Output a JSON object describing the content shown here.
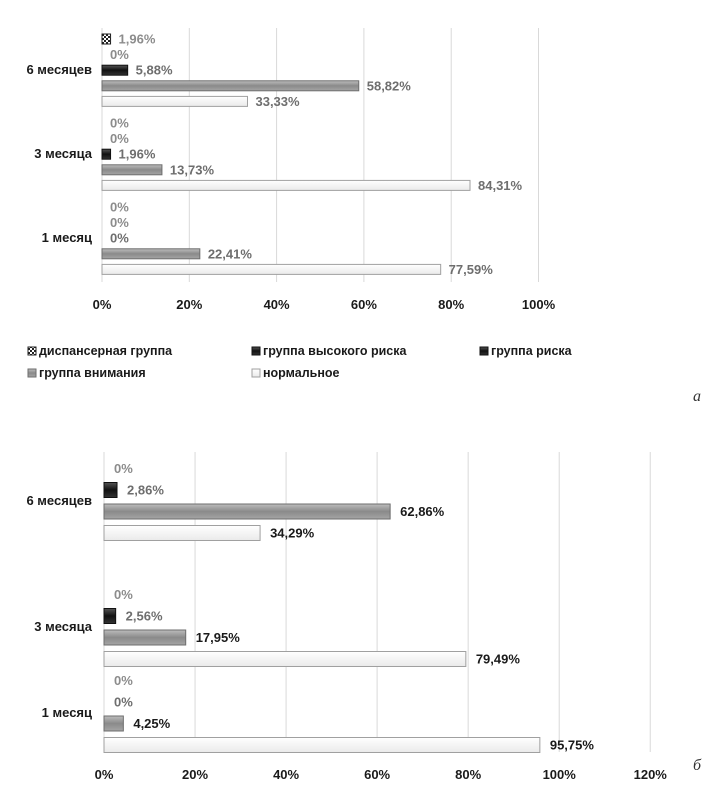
{
  "chart_data": [
    {
      "type": "bar",
      "orientation": "horizontal",
      "panel_label": "а",
      "categories": [
        "6 месяцев",
        "3 месяца",
        "1 месяц"
      ],
      "xlim": [
        0,
        100
      ],
      "ticks": [
        "0%",
        "20%",
        "40%",
        "60%",
        "80%",
        "100%"
      ],
      "grid": true,
      "legend_position": "bottom",
      "series": [
        {
          "name": "диспансерная группа",
          "key": "disp",
          "values": [
            1.96,
            0,
            0
          ],
          "labels": [
            "1,96%",
            "0%",
            "0%"
          ],
          "label_color": "#8c8c8c"
        },
        {
          "name": "группа высокого риска",
          "key": "high",
          "values": [
            0,
            0,
            0
          ],
          "labels": [
            "0%",
            "0%",
            "0%"
          ],
          "label_color": "#8c8c8c"
        },
        {
          "name": "группа риска",
          "key": "risk",
          "values": [
            5.88,
            1.96,
            0
          ],
          "labels": [
            "5,88%",
            "1,96%",
            "0%"
          ],
          "label_color": "#6e6e6e"
        },
        {
          "name": "группа внимания",
          "key": "attn",
          "values": [
            58.82,
            13.73,
            22.41
          ],
          "labels": [
            "58,82%",
            "13,73%",
            "22,41%"
          ],
          "label_color": "#6e6e6e"
        },
        {
          "name": "нормальное",
          "key": "norm",
          "values": [
            33.33,
            84.31,
            77.59
          ],
          "labels": [
            "33,33%",
            "84,31%",
            "77,59%"
          ],
          "label_color": "#6e6e6e"
        }
      ]
    },
    {
      "type": "bar",
      "orientation": "horizontal",
      "panel_label": "б",
      "categories": [
        "6 месяцев",
        "3 месяца",
        "1 месяц"
      ],
      "xlim": [
        0,
        120
      ],
      "ticks": [
        "0%",
        "20%",
        "40%",
        "60%",
        "80%",
        "100%",
        "120%"
      ],
      "grid": true,
      "series": [
        {
          "key": "high",
          "values": [
            0,
            0,
            0
          ],
          "labels": [
            "0%",
            "0%",
            "0%"
          ],
          "label_color": "#8c8c8c"
        },
        {
          "key": "risk",
          "values": [
            2.86,
            2.56,
            0
          ],
          "labels": [
            "2,86%",
            "2,56%",
            "0%"
          ],
          "label_color": "#6e6e6e"
        },
        {
          "key": "attn",
          "values": [
            62.86,
            17.95,
            4.25
          ],
          "labels": [
            "62,86%",
            "17,95%",
            "4,25%"
          ],
          "label_color": "#1a1a1a"
        },
        {
          "key": "norm",
          "values": [
            34.29,
            79.49,
            95.75
          ],
          "labels": [
            "34,29%",
            "79,49%",
            "95,75%"
          ],
          "label_color": "#1a1a1a"
        }
      ]
    }
  ]
}
